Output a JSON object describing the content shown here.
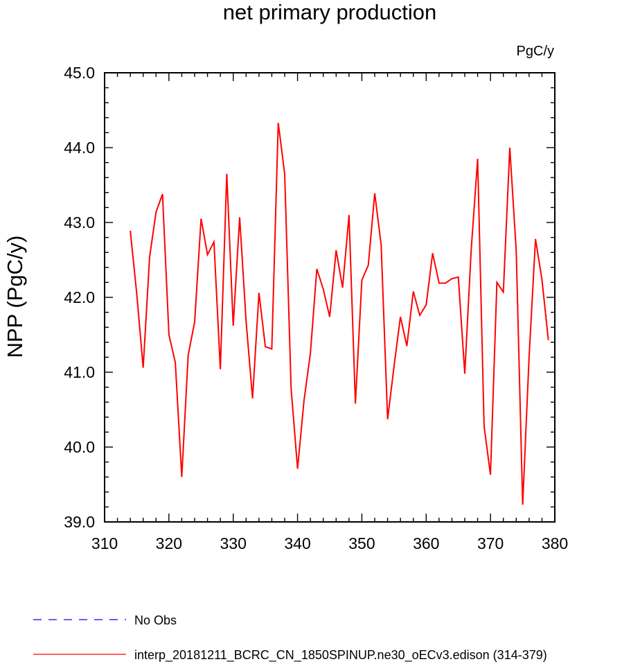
{
  "chart_data": {
    "type": "line",
    "title": "net primary production",
    "units_label": "PgC/y",
    "ylabel": "NPP  (PgC/y)",
    "xlabel": "",
    "xlim": [
      310,
      380
    ],
    "ylim": [
      39.0,
      45.0
    ],
    "x_ticks": [
      310,
      320,
      330,
      340,
      350,
      360,
      370,
      380
    ],
    "y_ticks": [
      "39.0",
      "40.0",
      "41.0",
      "42.0",
      "43.0",
      "44.0",
      "45.0"
    ],
    "grid": false,
    "legend_position": "bottom",
    "legend": [
      {
        "label": "No Obs",
        "color": "#0000ff",
        "dash": true
      },
      {
        "label": "interp_20181211_BCRC_CN_1850SPINUP.ne30_oECv3.edison (314-379)",
        "color": "#ff0000",
        "dash": false
      }
    ],
    "series": [
      {
        "name": "interp_20181211_BCRC_CN_1850SPINUP.ne30_oECv3.edison (314-379)",
        "color": "#ff0000",
        "x": [
          314,
          315,
          316,
          317,
          318,
          319,
          320,
          321,
          322,
          323,
          324,
          325,
          326,
          327,
          328,
          329,
          330,
          331,
          332,
          333,
          334,
          335,
          336,
          337,
          338,
          339,
          340,
          341,
          342,
          343,
          344,
          345,
          346,
          347,
          348,
          349,
          350,
          351,
          352,
          353,
          354,
          355,
          356,
          357,
          358,
          359,
          360,
          361,
          362,
          363,
          364,
          365,
          366,
          367,
          368,
          369,
          370,
          371,
          372,
          373,
          374,
          375,
          376,
          377,
          378,
          379
        ],
        "y": [
          42.89,
          42.05,
          41.06,
          42.54,
          43.14,
          43.38,
          41.5,
          41.13,
          39.6,
          41.23,
          41.67,
          43.05,
          42.57,
          42.74,
          41.04,
          43.65,
          41.62,
          43.07,
          41.68,
          40.65,
          42.06,
          41.34,
          41.31,
          44.33,
          43.65,
          40.78,
          39.71,
          40.62,
          41.25,
          42.38,
          42.11,
          41.74,
          42.63,
          42.13,
          43.1,
          40.58,
          42.23,
          42.43,
          43.39,
          42.7,
          40.37,
          41.08,
          41.74,
          41.35,
          42.08,
          41.76,
          41.9,
          42.59,
          42.19,
          42.19,
          42.25,
          42.27,
          40.98,
          42.64,
          43.85,
          40.28,
          39.63,
          42.2,
          42.07,
          44.0,
          42.62,
          39.23,
          41.21,
          42.78,
          42.24,
          41.43
        ]
      }
    ]
  }
}
